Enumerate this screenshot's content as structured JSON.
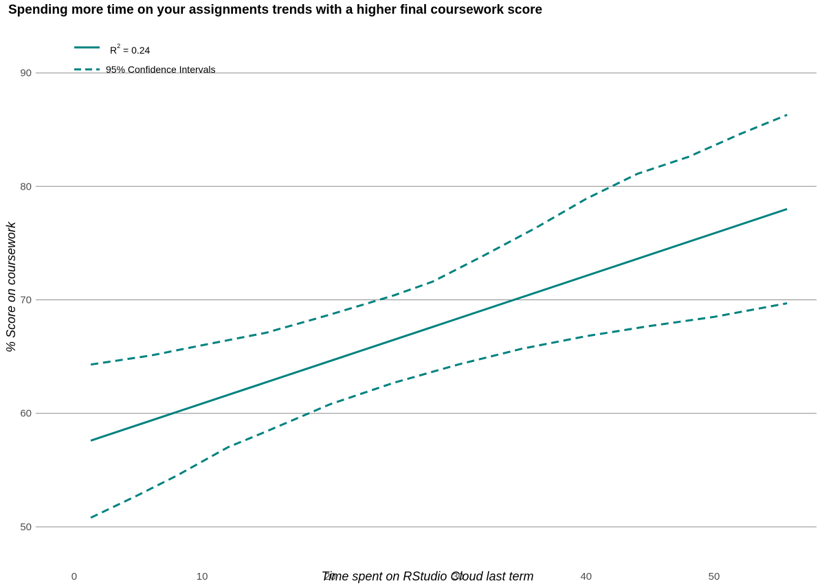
{
  "chart_data": {
    "type": "line",
    "title": "Spending more time on your assignments trends with a higher final coursework score",
    "xlabel": "Time spent on RStudio Cloud last term",
    "ylabel": "% Score on coursework",
    "xlim": [
      -3,
      58
    ],
    "ylim": [
      48,
      94
    ],
    "x_ticks": [
      0,
      10,
      20,
      30,
      40,
      50
    ],
    "y_ticks": [
      50,
      60,
      70,
      80,
      90
    ],
    "grid": "horizontal",
    "legend_position": "top-left",
    "colors": {
      "line": "#00827f",
      "grid": "#8c8c8c"
    },
    "series": [
      {
        "name": "R2 = 0.24",
        "legend_main": "R",
        "legend_sup": "2",
        "legend_rest": " = 0.24",
        "style": "solid",
        "x": [
          1.3,
          55.7
        ],
        "y": [
          57.6,
          78.0
        ]
      },
      {
        "name": "95% Confidence Intervals",
        "style": "dashed",
        "x": [
          1.3,
          6,
          10,
          15,
          20,
          25,
          28,
          32,
          36,
          40,
          44,
          48,
          52,
          55.7
        ],
        "y": [
          64.3,
          65.1,
          66.0,
          67.1,
          68.7,
          70.4,
          71.6,
          73.9,
          76.3,
          78.9,
          81.1,
          82.6,
          84.6,
          86.3
        ]
      },
      {
        "style": "dashed",
        "x": [
          1.3,
          5,
          8,
          12,
          15,
          20,
          25,
          30,
          35,
          40,
          45,
          50,
          55.7
        ],
        "y": [
          50.8,
          52.8,
          54.5,
          57.0,
          58.4,
          60.8,
          62.7,
          64.3,
          65.7,
          66.8,
          67.7,
          68.5,
          69.7
        ]
      }
    ]
  }
}
